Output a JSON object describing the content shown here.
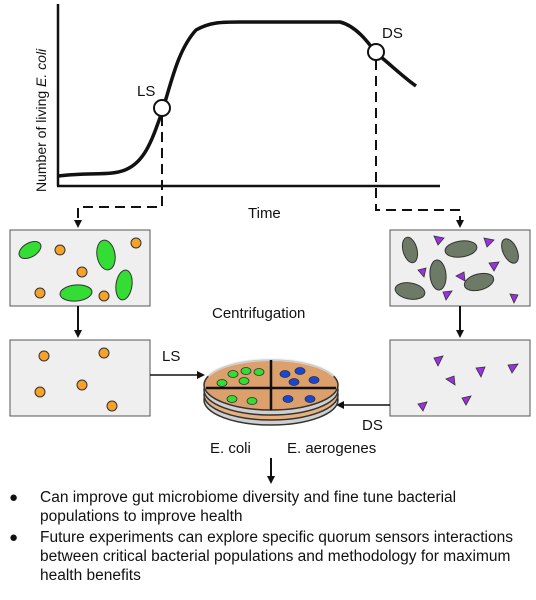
{
  "growth_curve": {
    "y_axis_label_prefix": "Number of living ",
    "y_axis_label_italic": "E. coli",
    "x_axis_label": "Time",
    "point_labels": [
      "LS",
      "DS"
    ]
  },
  "center": {
    "title": "Centrifugation",
    "arrow_left_label": "LS",
    "arrow_right_label": "DS",
    "dish_labels": [
      "E. coli",
      "E. aerogenes"
    ]
  },
  "colors": {
    "ecoli_cell": "#33dd33",
    "small_cell": "#f5a12a",
    "gray_cell": "#6d7a66",
    "triangle": "#9b30e0",
    "aerogenes_cell": "#1846d8",
    "dish_agar": "#dba06b",
    "panel_fill": "#efefef"
  },
  "bullets": [
    "Can improve gut microbiome diversity and fine tune bacterial populations to improve health",
    "Future experiments can explore specific quorum sensors interactions between critical bacterial populations and methodology for maximum health benefits"
  ]
}
